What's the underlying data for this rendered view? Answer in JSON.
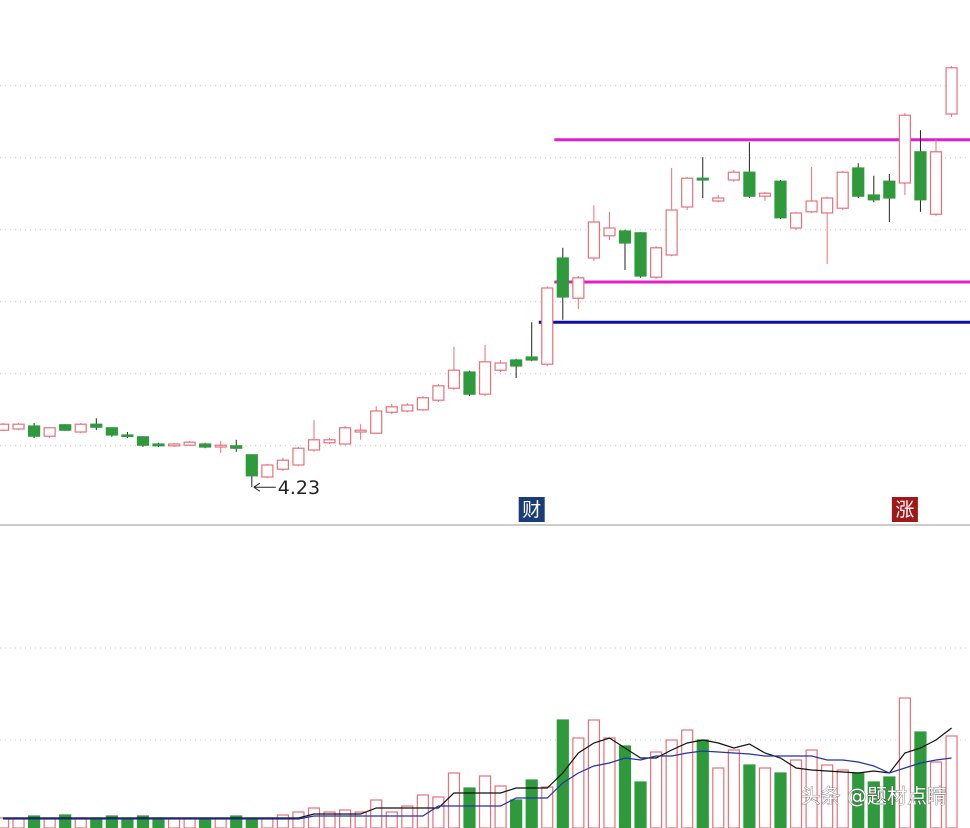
{
  "chart_data": {
    "type": "candlestick",
    "open": [
      5.18,
      5.2,
      5.25,
      5.08,
      5.27,
      5.15,
      5.28,
      5.22,
      5.1,
      5.07,
      4.95,
      4.92,
      4.93,
      4.95,
      4.9,
      4.92,
      4.77,
      4.4,
      4.53,
      4.6,
      4.85,
      4.97,
      4.95,
      5.15,
      5.13,
      5.48,
      5.5,
      5.52,
      5.68,
      5.88,
      6.15,
      5.78,
      6.18,
      6.35,
      6.4,
      6.28,
      8.05,
      7.38,
      8.05,
      8.42,
      8.5,
      8.47,
      7.73,
      8.1,
      8.9,
      9.38,
      9.0,
      9.35,
      9.48,
      9.08,
      9.33,
      8.55,
      8.82,
      8.8,
      8.88,
      9.55,
      9.1,
      9.33,
      9.3,
      9.82,
      8.78,
      10.45
    ],
    "close": [
      5.28,
      5.28,
      5.08,
      5.22,
      5.18,
      5.28,
      5.23,
      5.1,
      5.08,
      4.93,
      4.92,
      4.95,
      4.98,
      4.9,
      4.93,
      4.88,
      4.42,
      4.6,
      4.68,
      4.88,
      5.02,
      5.02,
      5.22,
      5.18,
      5.5,
      5.57,
      5.6,
      5.72,
      5.92,
      6.18,
      5.78,
      6.32,
      6.3,
      6.25,
      6.35,
      7.55,
      7.4,
      7.72,
      8.65,
      8.55,
      8.3,
      7.75,
      8.22,
      8.85,
      9.38,
      9.35,
      9.05,
      9.48,
      9.08,
      9.13,
      8.72,
      8.8,
      9.0,
      9.05,
      9.48,
      9.08,
      9.02,
      9.05,
      10.43,
      9.02,
      9.82,
      11.22
    ],
    "high": [
      5.3,
      5.3,
      5.3,
      5.23,
      5.28,
      5.3,
      5.38,
      5.23,
      5.15,
      5.08,
      4.97,
      4.97,
      5.0,
      4.97,
      5.0,
      5.02,
      4.78,
      4.62,
      4.72,
      4.9,
      5.35,
      5.05,
      5.25,
      5.28,
      5.58,
      5.62,
      5.63,
      5.75,
      5.95,
      6.57,
      6.17,
      6.6,
      6.35,
      6.37,
      6.98,
      7.58,
      8.22,
      7.75,
      8.93,
      8.82,
      8.52,
      8.48,
      8.25,
      9.55,
      9.4,
      9.73,
      9.1,
      9.52,
      9.98,
      9.15,
      9.35,
      8.82,
      9.57,
      9.07,
      9.5,
      9.63,
      9.42,
      9.45,
      10.47,
      10.18,
      10.02,
      11.25
    ],
    "low": [
      5.17,
      5.18,
      5.05,
      5.05,
      5.17,
      5.13,
      5.18,
      5.07,
      5.05,
      4.9,
      4.9,
      4.9,
      4.92,
      4.88,
      4.8,
      4.82,
      4.23,
      4.38,
      4.5,
      4.58,
      4.82,
      4.95,
      4.93,
      5.02,
      5.12,
      5.45,
      5.48,
      5.5,
      5.65,
      5.85,
      5.75,
      5.75,
      6.15,
      6.05,
      6.33,
      6.25,
      7.02,
      7.2,
      8.0,
      8.35,
      7.85,
      7.72,
      7.7,
      8.08,
      8.85,
      9.05,
      8.98,
      9.32,
      9.05,
      9.0,
      8.7,
      8.52,
      8.8,
      7.95,
      8.85,
      9.05,
      8.98,
      8.65,
      9.1,
      8.82,
      8.75,
      10.4
    ],
    "volume": [
      10,
      10,
      12,
      10,
      13,
      10,
      10,
      12,
      10,
      12,
      10,
      10,
      10,
      10,
      10,
      12,
      10,
      10,
      13,
      16,
      20,
      16,
      18,
      16,
      28,
      16,
      22,
      33,
      31,
      55,
      40,
      52,
      42,
      28,
      48,
      41,
      108,
      90,
      108,
      90,
      82,
      46,
      76,
      88,
      98,
      88,
      60,
      78,
      63,
      60,
      55,
      68,
      78,
      63,
      58,
      55,
      46,
      51,
      130,
      96,
      66,
      92
    ],
    "volume_ma": [
      {
        "color": "#111111",
        "values": [
          10,
          10,
          10,
          10,
          10,
          10,
          10,
          10,
          10,
          10,
          10,
          10,
          10,
          10,
          10,
          10,
          10,
          10,
          10,
          10,
          14,
          14,
          14,
          14,
          20,
          20,
          20,
          20,
          20,
          35,
          35,
          35,
          35,
          40,
          40,
          40,
          55,
          75,
          85,
          90,
          80,
          70,
          70,
          78,
          85,
          88,
          85,
          80,
          84,
          75,
          70,
          60,
          58,
          57,
          56,
          55,
          57,
          55,
          75,
          80,
          88,
          100
        ]
      },
      {
        "color": "#2233aa",
        "values": [
          9,
          9,
          9,
          9,
          9,
          9,
          9,
          9,
          9,
          9,
          9,
          9,
          9,
          9,
          9,
          9,
          9,
          9,
          9,
          9,
          12,
          12,
          12,
          12,
          12,
          12,
          12,
          12,
          22,
          22,
          22,
          22,
          22,
          30,
          30,
          30,
          45,
          55,
          62,
          65,
          70,
          68,
          72,
          72,
          75,
          77,
          76,
          75,
          74,
          72,
          72,
          72,
          72,
          68,
          68,
          66,
          62,
          55,
          60,
          65,
          68,
          70
        ]
      }
    ],
    "up_color": "#e8707a",
    "down_color": "#2e9a3c",
    "ylim": [
      3.6,
      12.35
    ],
    "yticks": [
      4.92,
      6.12,
      7.32,
      8.52,
      9.72,
      10.92
    ],
    "vlim": [
      0,
      230
    ],
    "vticks": [
      88,
      180
    ],
    "levels": [
      {
        "value": 10.02,
        "color": "#e020c8",
        "from_index": 36
      },
      {
        "value": 7.65,
        "color": "#e020c8",
        "from_index": 36
      },
      {
        "value": 6.98,
        "color": "#0a12a0",
        "from_index": 35
      }
    ],
    "badges": [
      {
        "text": "财",
        "index": 34,
        "color": "#1a3d7a"
      },
      {
        "text": "涨",
        "index": 58,
        "color": "#a01818"
      }
    ],
    "low_label_index": 16,
    "watermark": "头条 @题材点睛"
  }
}
